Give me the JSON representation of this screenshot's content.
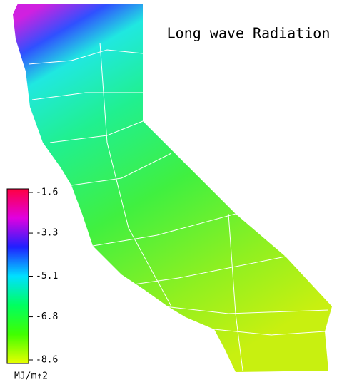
{
  "title": "Long wave Radiation",
  "legend": {
    "ticks": [
      -1.6,
      -3.3,
      -5.1,
      -6.8,
      -8.6
    ],
    "unit": "MJ/m↑2",
    "colors": [
      "#ff0040",
      "#e000e0",
      "#2020ff",
      "#00e0ff",
      "#00ff60",
      "#40ff00",
      "#e8ff00"
    ]
  }
}
